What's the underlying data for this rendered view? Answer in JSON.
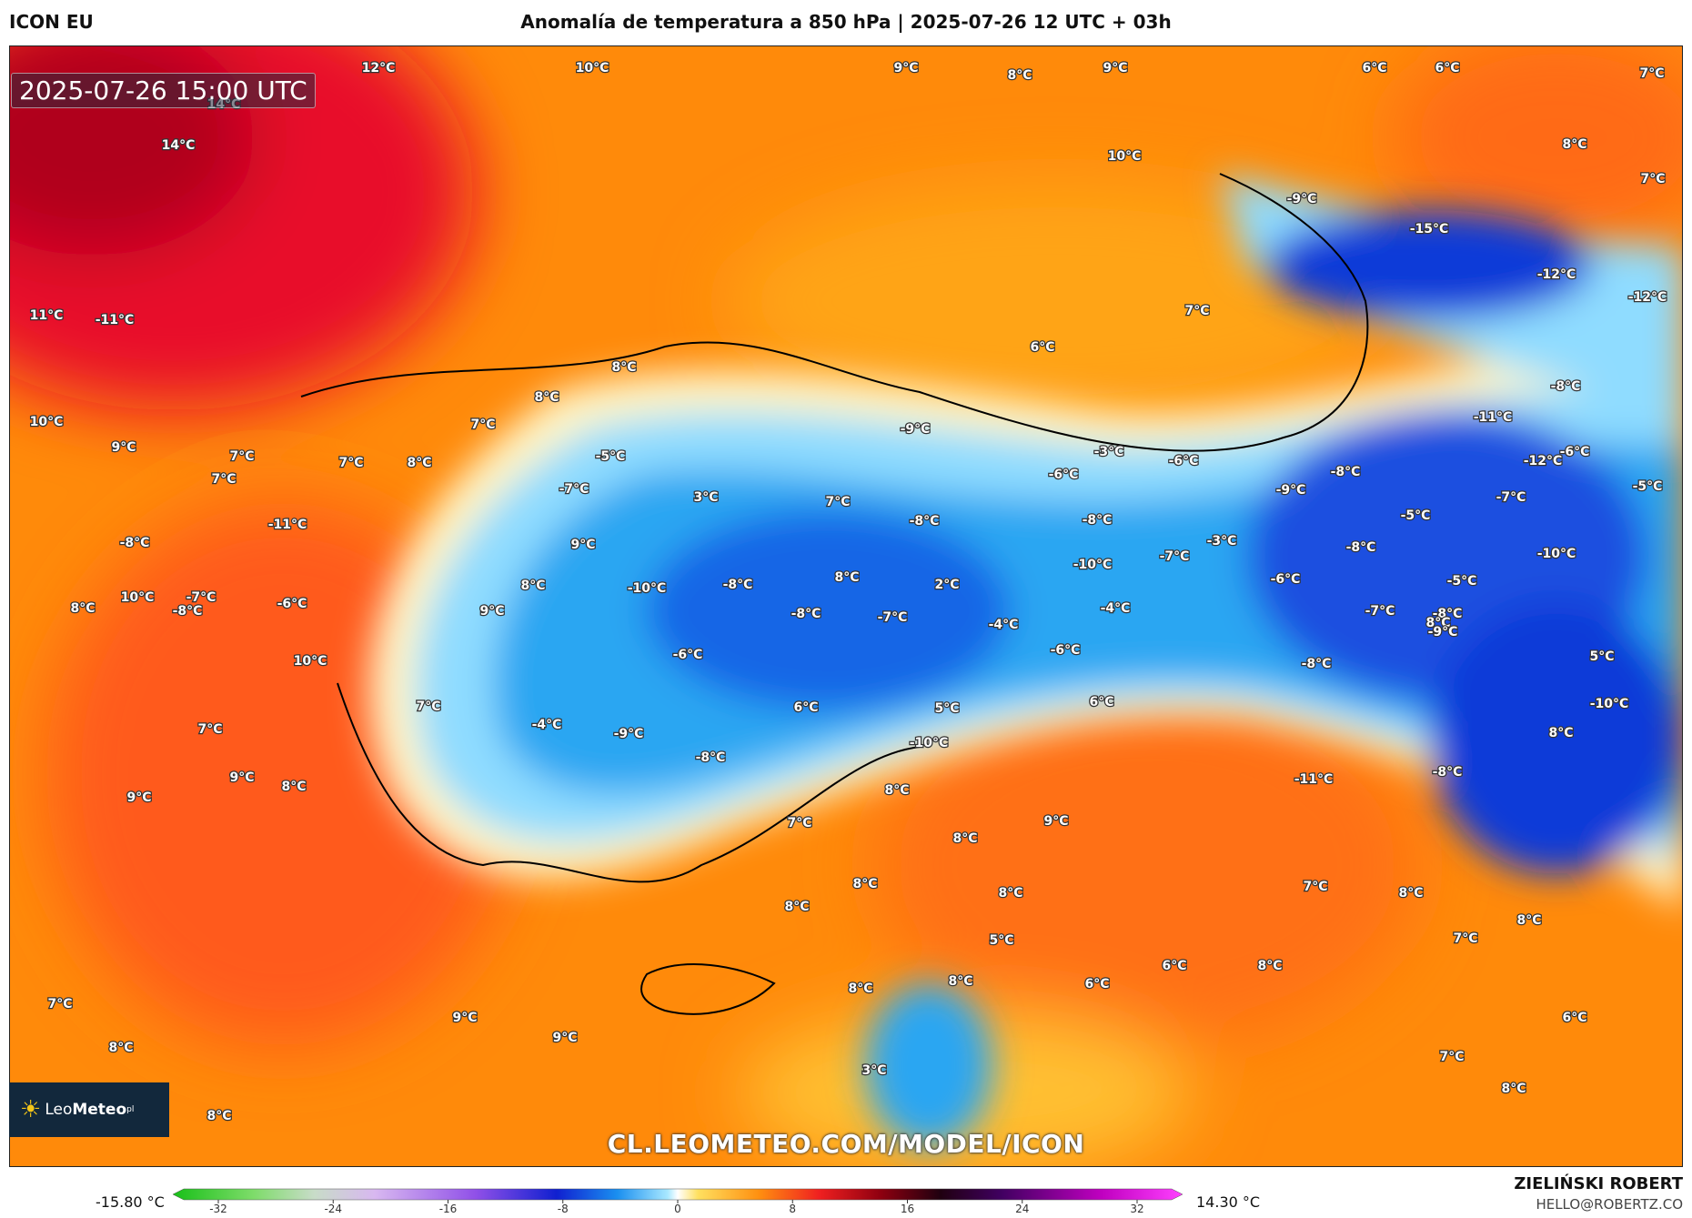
{
  "header": {
    "model": "ICON EU",
    "title": "Anomalía de temperatura a 850 hPa | 2025-07-26 12 UTC + 03h"
  },
  "map": {
    "valid_time": "2025-07-26 15:00 UTC",
    "watermark": "CL.LEOMETEO.COM/MODEL/ICON",
    "logo": {
      "name": "LeoMeteo",
      "prefix": "Leo",
      "suffix": "Meteo",
      "superscript": "pl"
    },
    "labels": [
      "12°C",
      "10°C",
      "9°C",
      "8°C",
      "9°C",
      "6°C",
      "6°C",
      "7°C",
      "14°C",
      "14°C",
      "10°C",
      "8°C",
      "7°C",
      "-9°C",
      "-15°C",
      "-12°C",
      "-12°C",
      "11°C",
      "-11°C",
      "7°C",
      "6°C",
      "8°C",
      "8°C",
      "10°C",
      "9°C",
      "-8°C",
      "7°C",
      "-9°C",
      "-11°C",
      "7°C",
      "7°C",
      "8°C",
      "7°C",
      "-5°C",
      "-3°C",
      "-6°C",
      "-6°C",
      "-12°C",
      "-7°C",
      "3°C",
      "-6°C",
      "-8°C",
      "-5°C",
      "-9°C",
      "-7°C",
      "-11°C",
      "7°C",
      "-8°C",
      "-5°C",
      "-8°C",
      "-8°C",
      "9°C",
      "-3°C",
      "-8°C",
      "-10°C",
      "-10°C",
      "-7°C",
      "-5°C",
      "-6°C",
      "-8°C",
      "-10°C",
      "8°C",
      "8°C",
      "8°C",
      "10°C",
      "-7°C",
      "-6°C",
      "-8°C",
      "2°C",
      "-4°C",
      "-7°C",
      "-7°C",
      "8°C",
      "9°C",
      "-9°C",
      "-8°C",
      "-4°C",
      "-8°C",
      "-6°C",
      "-6°C",
      "5°C",
      "-8°C",
      "-10°C",
      "6°C",
      "5°C",
      "10°C",
      "6°C",
      "-10°C",
      "8°C",
      "-4°C",
      "-9°C",
      "-8°C",
      "-8°C",
      "7°C",
      "7°C",
      "-11°C",
      "8°C",
      "9°C",
      "8°C",
      "9°C",
      "7°C",
      "9°C",
      "8°C",
      "8°C",
      "7°C",
      "8°C",
      "8°C",
      "8°C",
      "5°C",
      "6°C",
      "8°C",
      "7°C",
      "8°C",
      "8°C",
      "7°C",
      "8°C",
      "6°C",
      "6°C",
      "9°C",
      "8°C",
      "9°C",
      "7°C",
      "8°C",
      "8°C",
      "3°C"
    ]
  },
  "colorbar": {
    "min_label": "-15.80 °C",
    "max_label": "14.30 °C",
    "ticks": [
      "-32",
      "-24",
      "-16",
      "-8",
      "0",
      "8",
      "16",
      "24",
      "32"
    ]
  },
  "credit": {
    "author": "ZIELIŃSKI ROBERT",
    "email": "HELLO@ROBERTZ.CO"
  },
  "colors": {
    "hot_dark": "#c4001c",
    "hot": "#f4343a",
    "warm": "#ff7a1a",
    "mild": "#ffc010",
    "cold": "#2aa4f2",
    "very_cold": "#0a3ad8",
    "sea": "#ff8c00"
  }
}
